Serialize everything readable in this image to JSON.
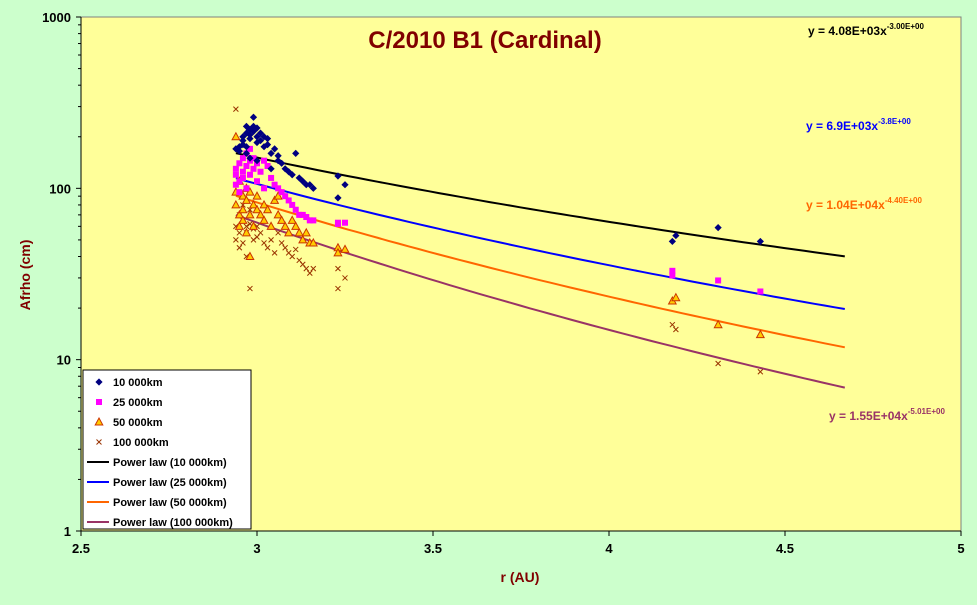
{
  "chart_data": {
    "type": "scatter",
    "title": "C/2010 B1 (Cardinal)",
    "xlabel": "r (AU)",
    "ylabel": "Afrho (cm)",
    "xlim": [
      2.5,
      5
    ],
    "ylim": [
      1,
      1000
    ],
    "yscale": "log",
    "x_ticks": [
      "2.5",
      "3",
      "3.5",
      "4",
      "4.5",
      "5"
    ],
    "y_ticks": [
      "1",
      "10",
      "100",
      "1000"
    ],
    "grid": false,
    "legend_position": "bottom-left",
    "plot_background": "#ffff99",
    "page_background": "#ccffcc",
    "series": [
      {
        "name": "10 000km",
        "kind": "scatter",
        "marker": "diamond",
        "color": "#000080",
        "points": [
          [
            2.94,
            170
          ],
          [
            2.95,
            175
          ],
          [
            2.95,
            165
          ],
          [
            2.96,
            180
          ],
          [
            2.96,
            190
          ],
          [
            2.96,
            200
          ],
          [
            2.97,
            175
          ],
          [
            2.97,
            210
          ],
          [
            2.97,
            230
          ],
          [
            2.98,
            220
          ],
          [
            2.98,
            195
          ],
          [
            2.98,
            205
          ],
          [
            2.99,
            215
          ],
          [
            2.99,
            230
          ],
          [
            2.99,
            260
          ],
          [
            3.0,
            225
          ],
          [
            3.0,
            200
          ],
          [
            3.0,
            185
          ],
          [
            3.01,
            210
          ],
          [
            3.01,
            190
          ],
          [
            3.02,
            200
          ],
          [
            3.02,
            175
          ],
          [
            3.03,
            195
          ],
          [
            3.03,
            180
          ],
          [
            3.04,
            160
          ],
          [
            3.05,
            170
          ],
          [
            3.06,
            155
          ],
          [
            3.06,
            145
          ],
          [
            3.07,
            140
          ],
          [
            3.08,
            130
          ],
          [
            3.09,
            125
          ],
          [
            3.1,
            120
          ],
          [
            3.11,
            160
          ],
          [
            3.12,
            115
          ],
          [
            3.13,
            110
          ],
          [
            3.14,
            105
          ],
          [
            3.15,
            105
          ],
          [
            3.16,
            100
          ],
          [
            3.23,
            118
          ],
          [
            3.23,
            88
          ],
          [
            3.25,
            105
          ],
          [
            2.97,
            160
          ],
          [
            2.98,
            150
          ],
          [
            3.0,
            145
          ],
          [
            3.04,
            130
          ],
          [
            4.18,
            49
          ],
          [
            4.19,
            53
          ],
          [
            4.31,
            59
          ],
          [
            4.43,
            49
          ]
        ]
      },
      {
        "name": "25 000km",
        "kind": "scatter",
        "marker": "square",
        "color": "#ff00ff",
        "points": [
          [
            2.94,
            105
          ],
          [
            2.94,
            120
          ],
          [
            2.94,
            130
          ],
          [
            2.95,
            140
          ],
          [
            2.95,
            110
          ],
          [
            2.95,
            95
          ],
          [
            2.96,
            150
          ],
          [
            2.96,
            125
          ],
          [
            2.96,
            115
          ],
          [
            2.97,
            135
          ],
          [
            2.97,
            100
          ],
          [
            2.97,
            160
          ],
          [
            2.98,
            145
          ],
          [
            2.98,
            170
          ],
          [
            2.98,
            120
          ],
          [
            2.99,
            130
          ],
          [
            2.99,
            150
          ],
          [
            3.0,
            140
          ],
          [
            3.0,
            110
          ],
          [
            3.01,
            125
          ],
          [
            3.02,
            145
          ],
          [
            3.02,
            100
          ],
          [
            3.03,
            135
          ],
          [
            3.04,
            115
          ],
          [
            3.05,
            105
          ],
          [
            3.06,
            100
          ],
          [
            3.07,
            95
          ],
          [
            3.08,
            90
          ],
          [
            3.09,
            85
          ],
          [
            3.1,
            80
          ],
          [
            3.11,
            75
          ],
          [
            3.12,
            70
          ],
          [
            3.13,
            70
          ],
          [
            3.14,
            68
          ],
          [
            3.15,
            65
          ],
          [
            3.16,
            65
          ],
          [
            3.23,
            63
          ],
          [
            3.23,
            62
          ],
          [
            3.25,
            63
          ],
          [
            4.18,
            31
          ],
          [
            4.18,
            33
          ],
          [
            4.31,
            29
          ],
          [
            4.43,
            25
          ]
        ]
      },
      {
        "name": "50 000km",
        "kind": "scatter",
        "marker": "triangle",
        "color": "#cc3300",
        "points": [
          [
            2.94,
            200
          ],
          [
            2.94,
            95
          ],
          [
            2.94,
            80
          ],
          [
            2.95,
            110
          ],
          [
            2.95,
            70
          ],
          [
            2.95,
            60
          ],
          [
            2.96,
            90
          ],
          [
            2.96,
            75
          ],
          [
            2.96,
            65
          ],
          [
            2.97,
            100
          ],
          [
            2.97,
            85
          ],
          [
            2.97,
            55
          ],
          [
            2.98,
            95
          ],
          [
            2.98,
            70
          ],
          [
            2.98,
            40
          ],
          [
            2.99,
            80
          ],
          [
            2.99,
            60
          ],
          [
            3.0,
            90
          ],
          [
            3.0,
            75
          ],
          [
            3.01,
            70
          ],
          [
            3.02,
            80
          ],
          [
            3.02,
            65
          ],
          [
            3.03,
            75
          ],
          [
            3.04,
            60
          ],
          [
            3.05,
            85
          ],
          [
            3.06,
            90
          ],
          [
            3.06,
            70
          ],
          [
            3.07,
            65
          ],
          [
            3.08,
            60
          ],
          [
            3.09,
            55
          ],
          [
            3.1,
            65
          ],
          [
            3.11,
            60
          ],
          [
            3.12,
            55
          ],
          [
            3.13,
            50
          ],
          [
            3.14,
            55
          ],
          [
            3.15,
            48
          ],
          [
            3.16,
            48
          ],
          [
            3.23,
            45
          ],
          [
            3.23,
            42
          ],
          [
            3.25,
            44
          ],
          [
            4.18,
            22
          ],
          [
            4.19,
            23
          ],
          [
            4.31,
            16
          ],
          [
            4.43,
            14
          ]
        ]
      },
      {
        "name": "100 000km",
        "kind": "scatter",
        "marker": "x",
        "color": "#993300",
        "points": [
          [
            2.94,
            290
          ],
          [
            2.94,
            60
          ],
          [
            2.94,
            50
          ],
          [
            2.95,
            45
          ],
          [
            2.95,
            55
          ],
          [
            2.95,
            70
          ],
          [
            2.96,
            80
          ],
          [
            2.96,
            65
          ],
          [
            2.96,
            48
          ],
          [
            2.97,
            60
          ],
          [
            2.97,
            55
          ],
          [
            2.97,
            40
          ],
          [
            2.98,
            26
          ],
          [
            2.98,
            75
          ],
          [
            2.98,
            62
          ],
          [
            2.99,
            58
          ],
          [
            2.99,
            50
          ],
          [
            3.0,
            60
          ],
          [
            3.0,
            52
          ],
          [
            3.01,
            55
          ],
          [
            3.02,
            48
          ],
          [
            3.03,
            45
          ],
          [
            3.04,
            50
          ],
          [
            3.05,
            42
          ],
          [
            3.06,
            55
          ],
          [
            3.07,
            48
          ],
          [
            3.08,
            45
          ],
          [
            3.09,
            42
          ],
          [
            3.1,
            40
          ],
          [
            3.11,
            44
          ],
          [
            3.12,
            38
          ],
          [
            3.13,
            36
          ],
          [
            3.14,
            34
          ],
          [
            3.15,
            32
          ],
          [
            3.16,
            34
          ],
          [
            3.23,
            34
          ],
          [
            3.23,
            26
          ],
          [
            3.25,
            30
          ],
          [
            4.18,
            16
          ],
          [
            4.19,
            15
          ],
          [
            4.31,
            9.5
          ],
          [
            4.43,
            8.5
          ]
        ]
      },
      {
        "name": "Power law (10 000km)",
        "kind": "line",
        "color": "#000000",
        "a": 4080,
        "b": -3.0,
        "x_range": [
          2.94,
          4.67
        ]
      },
      {
        "name": "Power law (25 000km)",
        "kind": "line",
        "color": "#0000ff",
        "a": 6900,
        "b": -3.8,
        "x_range": [
          2.94,
          4.67
        ]
      },
      {
        "name": "Power law (50 000km)",
        "kind": "line",
        "color": "#ff6600",
        "a": 10400,
        "b": -4.4,
        "x_range": [
          2.94,
          4.67
        ]
      },
      {
        "name": "Power law (100 000km)",
        "kind": "line",
        "color": "#993366",
        "a": 15500,
        "b": -5.01,
        "x_range": [
          2.94,
          4.67
        ]
      }
    ],
    "equations": [
      {
        "base": "y = 4.08E+03x",
        "exp": "-3.00E+00",
        "color": "#000000"
      },
      {
        "base": "y = 6.9E+03x",
        "exp": "-3.8E+00",
        "color": "#0000ff"
      },
      {
        "base": "y = 1.04E+04x",
        "exp": "-4.40E+00",
        "color": "#ff6600"
      },
      {
        "base": "y = 1.55E+04x",
        "exp": "-5.01E+00",
        "color": "#993366"
      }
    ]
  }
}
